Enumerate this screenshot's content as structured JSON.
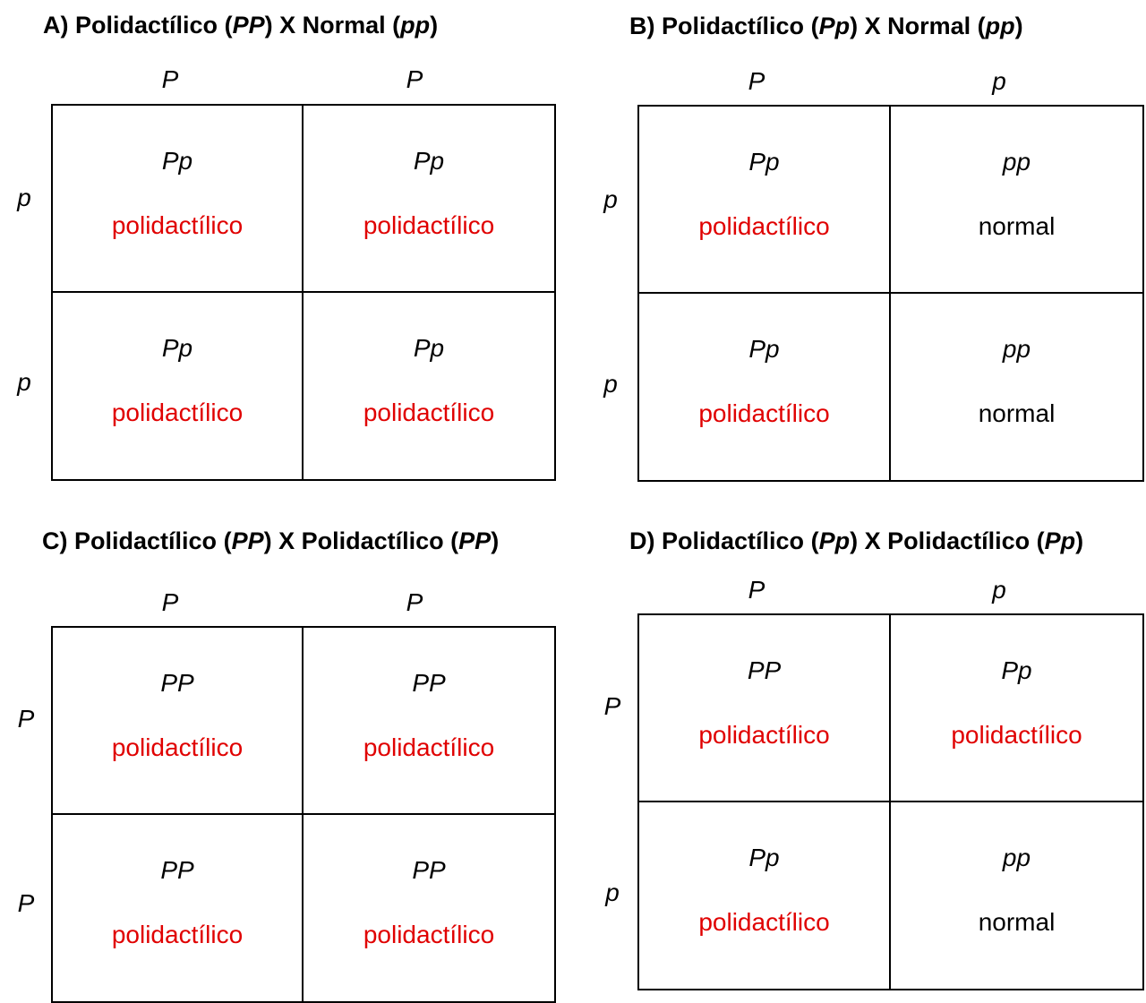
{
  "colors": {
    "dominant_phenotype": "#e00000",
    "recessive_phenotype": "#000000"
  },
  "squares": [
    {
      "id": "a",
      "title": {
        "label": "A)",
        "parent1_phenotype": "Polidactílico",
        "parent1_genotype": "PP",
        "cross": "X",
        "parent2_phenotype": "Normal",
        "parent2_genotype": "pp"
      },
      "col_gametes": [
        "P",
        "P"
      ],
      "row_gametes": [
        "p",
        "p"
      ],
      "cells": [
        [
          {
            "genotype": "Pp",
            "phenotype": "polidactílico",
            "dominant": true
          },
          {
            "genotype": "Pp",
            "phenotype": "polidactílico",
            "dominant": true
          }
        ],
        [
          {
            "genotype": "Pp",
            "phenotype": "polidactílico",
            "dominant": true
          },
          {
            "genotype": "Pp",
            "phenotype": "polidactílico",
            "dominant": true
          }
        ]
      ]
    },
    {
      "id": "b",
      "title": {
        "label": "B)",
        "parent1_phenotype": "Polidactílico",
        "parent1_genotype": "Pp",
        "cross": "X",
        "parent2_phenotype": "Normal",
        "parent2_genotype": "pp"
      },
      "col_gametes": [
        "P",
        "p"
      ],
      "row_gametes": [
        "p",
        "p"
      ],
      "cells": [
        [
          {
            "genotype": "Pp",
            "phenotype": "polidactílico",
            "dominant": true
          },
          {
            "genotype": "pp",
            "phenotype": "normal",
            "dominant": false
          }
        ],
        [
          {
            "genotype": "Pp",
            "phenotype": "polidactílico",
            "dominant": true
          },
          {
            "genotype": "pp",
            "phenotype": "normal",
            "dominant": false
          }
        ]
      ]
    },
    {
      "id": "c",
      "title": {
        "label": "C)",
        "parent1_phenotype": "Polidactílico",
        "parent1_genotype": "PP",
        "cross": "X",
        "parent2_phenotype": "Polidactílico",
        "parent2_genotype": "PP"
      },
      "col_gametes": [
        "P",
        "P"
      ],
      "row_gametes": [
        "P",
        "P"
      ],
      "cells": [
        [
          {
            "genotype": "PP",
            "phenotype": "polidactílico",
            "dominant": true
          },
          {
            "genotype": "PP",
            "phenotype": "polidactílico",
            "dominant": true
          }
        ],
        [
          {
            "genotype": "PP",
            "phenotype": "polidactílico",
            "dominant": true
          },
          {
            "genotype": "PP",
            "phenotype": "polidactílico",
            "dominant": true
          }
        ]
      ]
    },
    {
      "id": "d",
      "title": {
        "label": "D)",
        "parent1_phenotype": "Polidactílico",
        "parent1_genotype": "Pp",
        "cross": "X",
        "parent2_phenotype": "Polidactílico",
        "parent2_genotype": "Pp"
      },
      "col_gametes": [
        "P",
        "p"
      ],
      "row_gametes": [
        "P",
        "p"
      ],
      "cells": [
        [
          {
            "genotype": "PP",
            "phenotype": "polidactílico",
            "dominant": true
          },
          {
            "genotype": "Pp",
            "phenotype": "polidactílico",
            "dominant": true
          }
        ],
        [
          {
            "genotype": "Pp",
            "phenotype": "polidactílico",
            "dominant": true
          },
          {
            "genotype": "pp",
            "phenotype": "normal",
            "dominant": false
          }
        ]
      ]
    }
  ]
}
